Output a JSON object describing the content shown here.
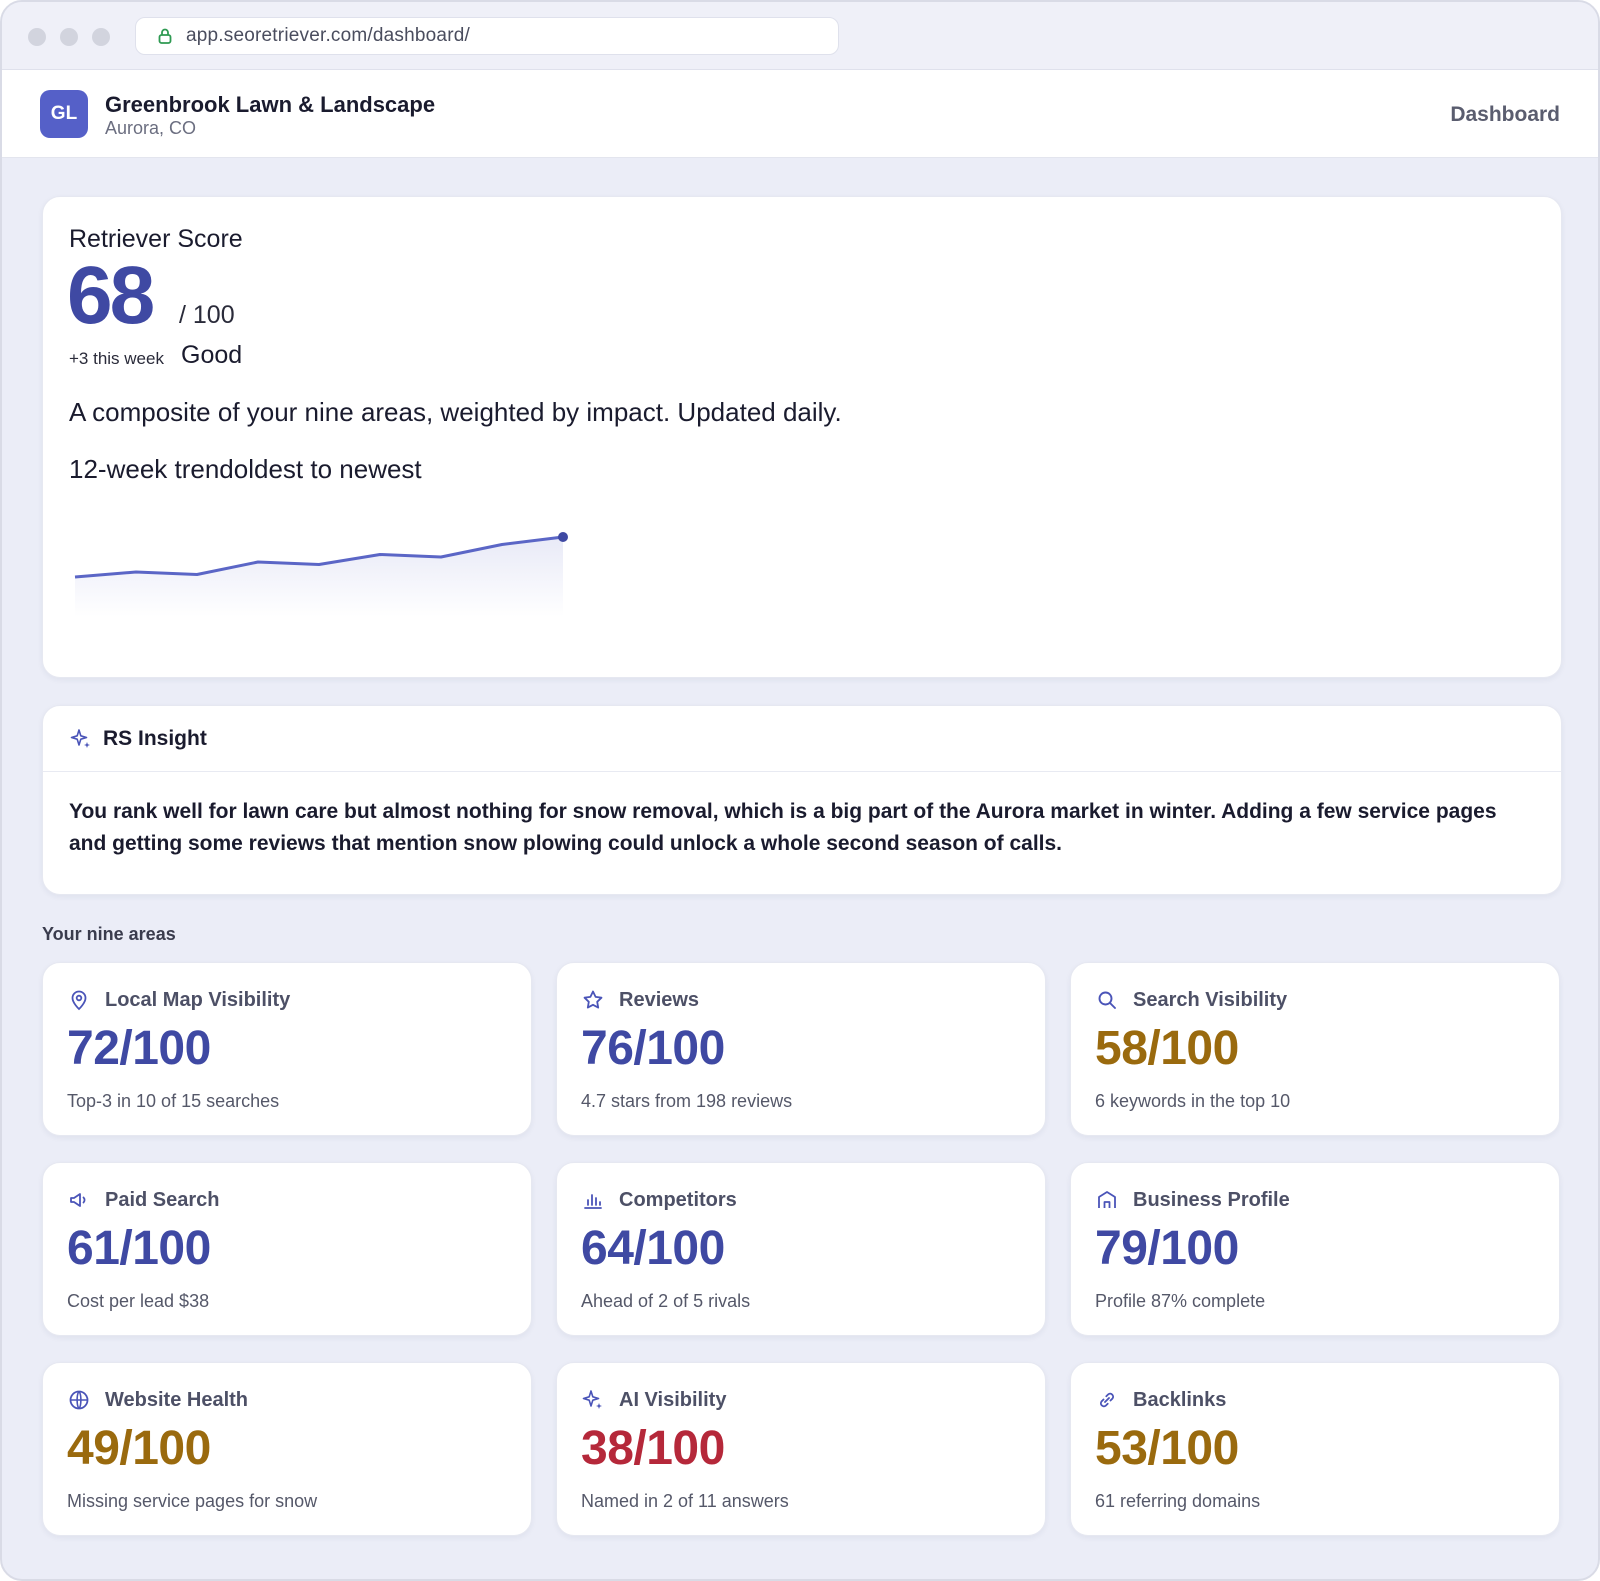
{
  "browser": {
    "url": "app.seoretriever.com/dashboard/"
  },
  "header": {
    "logo_initials": "GL",
    "business_name": "Greenbrook Lawn & Landscape",
    "location": "Aurora, CO",
    "nav_item": "Dashboard"
  },
  "score": {
    "title": "Retriever Score",
    "value": "68",
    "max": "/ 100",
    "delta": "+3 this week",
    "rating": "Good",
    "description": "A composite of your nine areas, weighted by impact. Updated daily.",
    "trend_label": "12-week trendoldest to newest",
    "trend_values": [
      60,
      61,
      60.5,
      63,
      62.5,
      64.5,
      64,
      66.5,
      68
    ],
    "colors": {
      "line": "#5b66c6",
      "accent": "#3f49a3"
    }
  },
  "insight": {
    "title": "RS Insight",
    "icon": "sparkle-icon",
    "text": "You rank well for lawn care but almost nothing for snow removal, which is a big part of the Aurora market in winter. Adding a few service pages and getting some reviews that mention snow plowing could unlock a whole second season of calls."
  },
  "areas": {
    "label": "Your nine areas",
    "colors": {
      "good": "#3f49a3",
      "mid": "#9a6a0e",
      "bad": "#b5283a"
    },
    "items": [
      {
        "name": "Local Map Visibility",
        "icon": "map-pin-icon",
        "score": "72/100",
        "status": "good",
        "note": "Top-3 in 10 of 15 searches"
      },
      {
        "name": "Reviews",
        "icon": "star-icon",
        "score": "76/100",
        "status": "good",
        "note": "4.7 stars from 198 reviews"
      },
      {
        "name": "Search Visibility",
        "icon": "search-icon",
        "score": "58/100",
        "status": "mid",
        "note": "6 keywords in the top 10"
      },
      {
        "name": "Paid Search",
        "icon": "megaphone-icon",
        "score": "61/100",
        "status": "good",
        "note": "Cost per lead $38"
      },
      {
        "name": "Competitors",
        "icon": "bar-chart-icon",
        "score": "64/100",
        "status": "good",
        "note": "Ahead of 2 of 5 rivals"
      },
      {
        "name": "Business Profile",
        "icon": "storefront-icon",
        "score": "79/100",
        "status": "good",
        "note": "Profile 87% complete"
      },
      {
        "name": "Website Health",
        "icon": "globe-icon",
        "score": "49/100",
        "status": "mid",
        "note": "Missing service pages for snow"
      },
      {
        "name": "AI Visibility",
        "icon": "sparkle-icon",
        "score": "38/100",
        "status": "bad",
        "note": "Named in 2 of 11 answers"
      },
      {
        "name": "Backlinks",
        "icon": "link-icon",
        "score": "53/100",
        "status": "mid",
        "note": "61 referring domains"
      }
    ]
  }
}
